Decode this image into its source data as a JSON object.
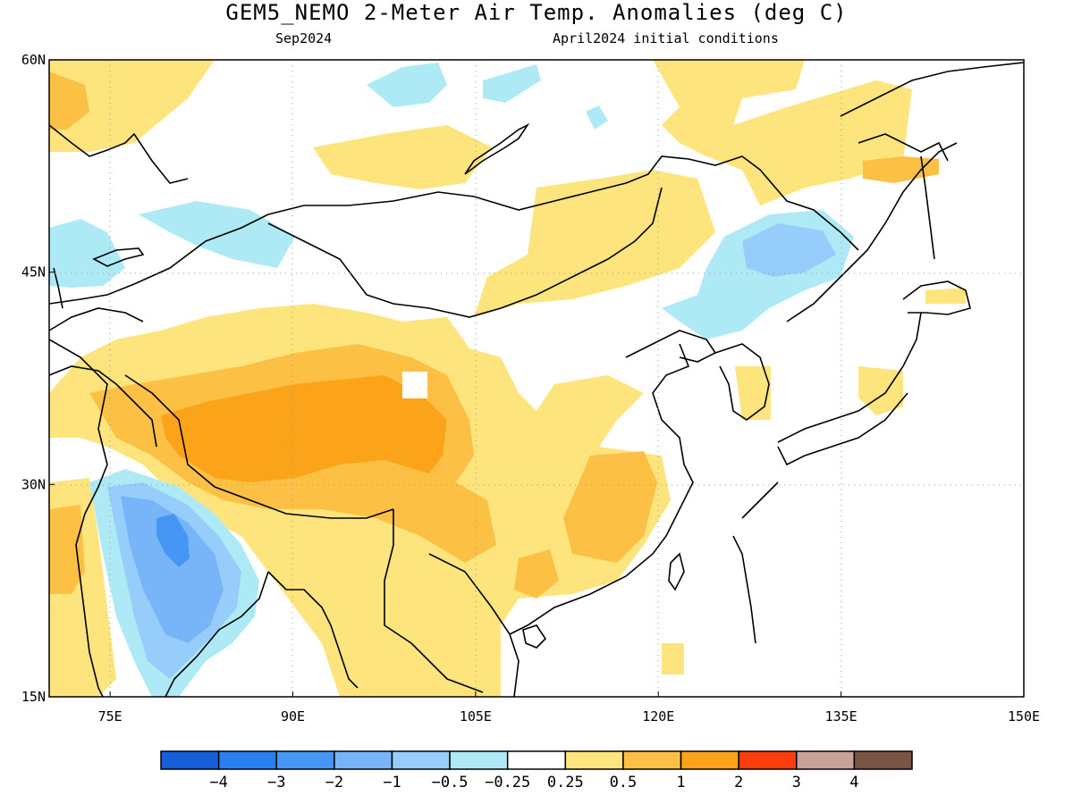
{
  "title": "GEM5_NEMO 2-Meter Air Temp. Anomalies (deg C)",
  "subtitle_left": "Sep2024",
  "subtitle_right": "April2024 initial conditions",
  "map": {
    "lon_range": [
      70,
      150
    ],
    "lat_range": [
      15,
      60
    ],
    "lon_ticks": [
      {
        "value": 75,
        "label": "75E"
      },
      {
        "value": 90,
        "label": "90E"
      },
      {
        "value": 105,
        "label": "105E"
      },
      {
        "value": 120,
        "label": "120E"
      },
      {
        "value": 135,
        "label": "135E"
      },
      {
        "value": 150,
        "label": "150E"
      }
    ],
    "lat_ticks": [
      {
        "value": 60,
        "label": "60N"
      },
      {
        "value": 45,
        "label": "45N"
      },
      {
        "value": 30,
        "label": "30N"
      },
      {
        "value": 15,
        "label": "15N"
      }
    ],
    "grid": "dotted"
  },
  "colorbar": {
    "colors": [
      "#1560d8",
      "#2a7ff0",
      "#4696f5",
      "#78b4f8",
      "#96cdfa",
      "#aeeaf6",
      "#ffffff",
      "#fde47c",
      "#fcc044",
      "#fba41a",
      "#fb3c0c",
      "#c8a296",
      "#7c5446"
    ],
    "labels": [
      "−4",
      "−3",
      "−2",
      "−1",
      "−0.5",
      "−0.25",
      "0.25",
      "0.5",
      "1",
      "2",
      "3",
      "4"
    ]
  },
  "anomaly_regions": [
    {
      "name": "tibet-warm",
      "level": "0.25",
      "color": "#fde47c"
    },
    {
      "name": "tibet-warm-core",
      "level": "0.5",
      "color": "#fcc044"
    },
    {
      "name": "tibet-warm-peak",
      "level": "1",
      "color": "#fba41a"
    },
    {
      "name": "india-cool",
      "level": "-0.25",
      "color": "#aeeaf6"
    },
    {
      "name": "india-cool-core",
      "level": "-1",
      "color": "#78b4f8"
    },
    {
      "name": "india-cool-peak",
      "level": "-2",
      "color": "#4696f5"
    },
    {
      "name": "manchuria-cool",
      "level": "-0.25",
      "color": "#aeeaf6"
    },
    {
      "name": "manchuria-cool-core",
      "level": "-0.5",
      "color": "#96cdfa"
    },
    {
      "name": "mongolia-warm",
      "level": "0.25",
      "color": "#fde47c"
    },
    {
      "name": "south-china-warm",
      "level": "0.5",
      "color": "#fcc044"
    }
  ]
}
